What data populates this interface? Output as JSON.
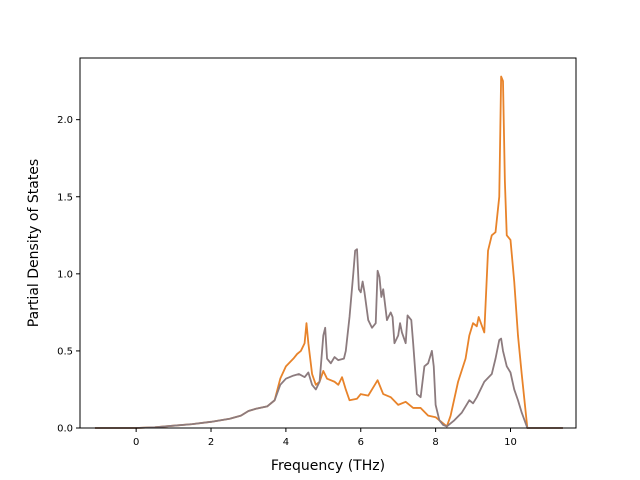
{
  "chart_data": {
    "type": "line",
    "title": "",
    "xlabel": "Frequency (THz)",
    "ylabel": "Partial Density of States",
    "xlim": [
      -1.5,
      11.75
    ],
    "ylim": [
      0.0,
      2.4
    ],
    "xticks": [
      0,
      2,
      4,
      6,
      8,
      10
    ],
    "xtick_labels": [
      "0",
      "2",
      "4",
      "6",
      "8",
      "10"
    ],
    "yticks": [
      0.0,
      0.5,
      1.0,
      1.5,
      2.0
    ],
    "ytick_labels": [
      "0.0",
      "0.5",
      "1.0",
      "1.5",
      "2.0"
    ],
    "grid": false,
    "legend": "none",
    "series": [
      {
        "color": "#e8832a",
        "points": [
          [
            -1.1,
            0.0
          ],
          [
            0.0,
            0.0
          ],
          [
            0.5,
            0.005
          ],
          [
            1.0,
            0.015
          ],
          [
            1.5,
            0.025
          ],
          [
            2.0,
            0.04
          ],
          [
            2.5,
            0.06
          ],
          [
            2.8,
            0.08
          ],
          [
            3.0,
            0.11
          ],
          [
            3.2,
            0.125
          ],
          [
            3.5,
            0.14
          ],
          [
            3.7,
            0.18
          ],
          [
            3.85,
            0.32
          ],
          [
            4.0,
            0.4
          ],
          [
            4.2,
            0.45
          ],
          [
            4.3,
            0.48
          ],
          [
            4.4,
            0.5
          ],
          [
            4.5,
            0.55
          ],
          [
            4.55,
            0.68
          ],
          [
            4.6,
            0.55
          ],
          [
            4.7,
            0.35
          ],
          [
            4.8,
            0.28
          ],
          [
            4.9,
            0.3
          ],
          [
            5.0,
            0.37
          ],
          [
            5.1,
            0.32
          ],
          [
            5.3,
            0.3
          ],
          [
            5.4,
            0.28
          ],
          [
            5.5,
            0.33
          ],
          [
            5.6,
            0.25
          ],
          [
            5.7,
            0.18
          ],
          [
            5.9,
            0.19
          ],
          [
            6.0,
            0.22
          ],
          [
            6.2,
            0.21
          ],
          [
            6.4,
            0.29
          ],
          [
            6.45,
            0.31
          ],
          [
            6.6,
            0.22
          ],
          [
            6.8,
            0.2
          ],
          [
            7.0,
            0.15
          ],
          [
            7.2,
            0.17
          ],
          [
            7.4,
            0.13
          ],
          [
            7.6,
            0.13
          ],
          [
            7.8,
            0.08
          ],
          [
            8.0,
            0.07
          ],
          [
            8.2,
            0.03
          ],
          [
            8.3,
            0.01
          ],
          [
            8.4,
            0.08
          ],
          [
            8.6,
            0.3
          ],
          [
            8.8,
            0.45
          ],
          [
            8.9,
            0.6
          ],
          [
            9.0,
            0.68
          ],
          [
            9.1,
            0.66
          ],
          [
            9.15,
            0.72
          ],
          [
            9.3,
            0.62
          ],
          [
            9.4,
            1.15
          ],
          [
            9.5,
            1.25
          ],
          [
            9.6,
            1.27
          ],
          [
            9.7,
            1.5
          ],
          [
            9.75,
            2.28
          ],
          [
            9.8,
            2.25
          ],
          [
            9.85,
            1.6
          ],
          [
            9.9,
            1.25
          ],
          [
            10.0,
            1.22
          ],
          [
            10.1,
            0.95
          ],
          [
            10.2,
            0.6
          ],
          [
            10.3,
            0.35
          ],
          [
            10.45,
            0.0
          ],
          [
            11.4,
            0.0
          ]
        ]
      },
      {
        "color": "#8c7b7e",
        "points": [
          [
            -1.1,
            0.0
          ],
          [
            0.0,
            0.0
          ],
          [
            0.5,
            0.005
          ],
          [
            1.0,
            0.015
          ],
          [
            1.5,
            0.025
          ],
          [
            2.0,
            0.04
          ],
          [
            2.5,
            0.06
          ],
          [
            2.8,
            0.08
          ],
          [
            3.0,
            0.11
          ],
          [
            3.2,
            0.125
          ],
          [
            3.5,
            0.14
          ],
          [
            3.7,
            0.18
          ],
          [
            3.85,
            0.28
          ],
          [
            4.0,
            0.32
          ],
          [
            4.2,
            0.34
          ],
          [
            4.35,
            0.35
          ],
          [
            4.5,
            0.33
          ],
          [
            4.6,
            0.36
          ],
          [
            4.7,
            0.28
          ],
          [
            4.8,
            0.25
          ],
          [
            4.9,
            0.3
          ],
          [
            4.95,
            0.45
          ],
          [
            5.0,
            0.6
          ],
          [
            5.05,
            0.65
          ],
          [
            5.1,
            0.45
          ],
          [
            5.2,
            0.42
          ],
          [
            5.3,
            0.46
          ],
          [
            5.4,
            0.44
          ],
          [
            5.55,
            0.45
          ],
          [
            5.6,
            0.5
          ],
          [
            5.7,
            0.72
          ],
          [
            5.8,
            1.0
          ],
          [
            5.85,
            1.15
          ],
          [
            5.9,
            1.16
          ],
          [
            5.95,
            0.9
          ],
          [
            6.0,
            0.88
          ],
          [
            6.05,
            0.95
          ],
          [
            6.1,
            0.88
          ],
          [
            6.2,
            0.7
          ],
          [
            6.3,
            0.65
          ],
          [
            6.4,
            0.68
          ],
          [
            6.45,
            1.02
          ],
          [
            6.5,
            0.98
          ],
          [
            6.55,
            0.85
          ],
          [
            6.6,
            0.9
          ],
          [
            6.7,
            0.7
          ],
          [
            6.8,
            0.75
          ],
          [
            6.85,
            0.72
          ],
          [
            6.9,
            0.55
          ],
          [
            7.0,
            0.6
          ],
          [
            7.05,
            0.68
          ],
          [
            7.1,
            0.62
          ],
          [
            7.2,
            0.55
          ],
          [
            7.25,
            0.73
          ],
          [
            7.35,
            0.7
          ],
          [
            7.4,
            0.55
          ],
          [
            7.5,
            0.22
          ],
          [
            7.6,
            0.2
          ],
          [
            7.7,
            0.4
          ],
          [
            7.8,
            0.42
          ],
          [
            7.9,
            0.5
          ],
          [
            7.95,
            0.4
          ],
          [
            8.0,
            0.15
          ],
          [
            8.1,
            0.05
          ],
          [
            8.2,
            0.02
          ],
          [
            8.3,
            0.01
          ],
          [
            8.5,
            0.05
          ],
          [
            8.7,
            0.1
          ],
          [
            8.8,
            0.14
          ],
          [
            8.9,
            0.18
          ],
          [
            9.0,
            0.16
          ],
          [
            9.1,
            0.2
          ],
          [
            9.3,
            0.3
          ],
          [
            9.5,
            0.35
          ],
          [
            9.6,
            0.45
          ],
          [
            9.7,
            0.57
          ],
          [
            9.75,
            0.58
          ],
          [
            9.8,
            0.5
          ],
          [
            9.9,
            0.4
          ],
          [
            10.0,
            0.36
          ],
          [
            10.1,
            0.25
          ],
          [
            10.2,
            0.18
          ],
          [
            10.3,
            0.1
          ],
          [
            10.45,
            0.0
          ],
          [
            11.4,
            0.0
          ]
        ]
      }
    ]
  }
}
